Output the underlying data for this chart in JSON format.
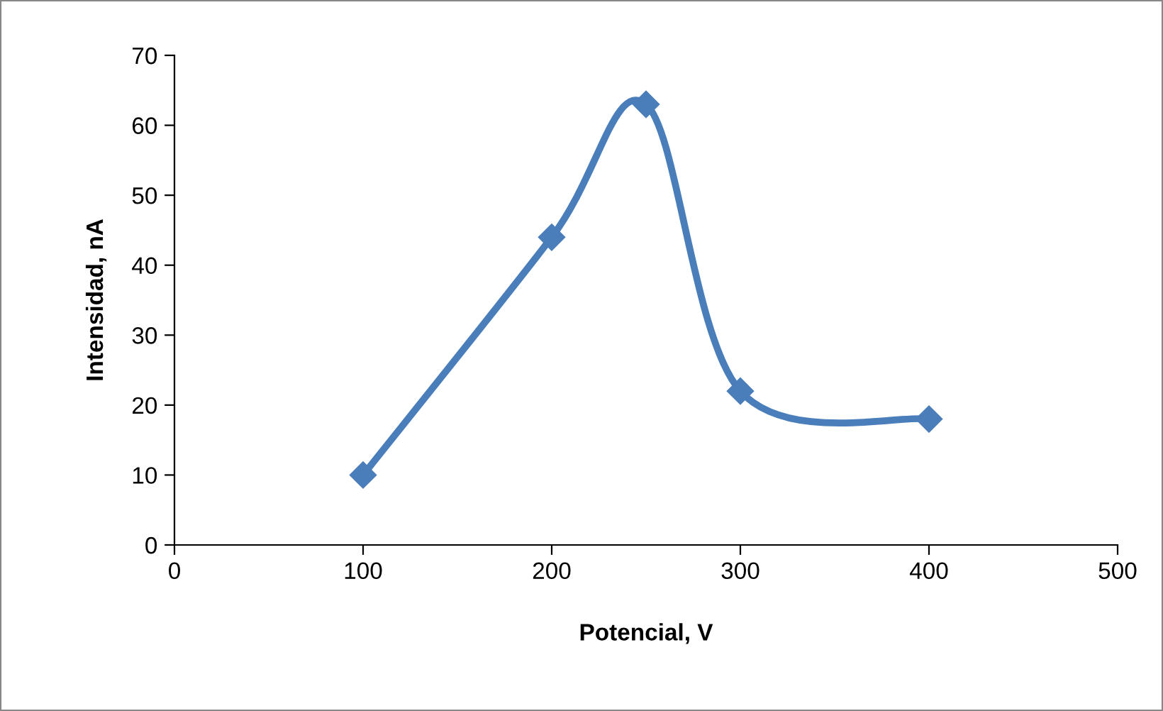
{
  "chart_data": {
    "type": "line",
    "xlabel": "Potencial, V",
    "ylabel": "Intensidad, nA",
    "x": [
      100,
      200,
      250,
      300,
      400
    ],
    "series": [
      {
        "color": "#4a7ebb",
        "values": [
          10,
          44,
          63,
          22,
          18
        ]
      }
    ],
    "xlim": [
      0,
      500
    ],
    "xticks": [
      0,
      100,
      200,
      300,
      400,
      500
    ],
    "ylim": [
      0,
      70
    ],
    "yticks": [
      0,
      10,
      20,
      30,
      40,
      50,
      60,
      70
    ],
    "marker": "diamond",
    "line_style": "solid",
    "grid": false,
    "legend": false
  }
}
